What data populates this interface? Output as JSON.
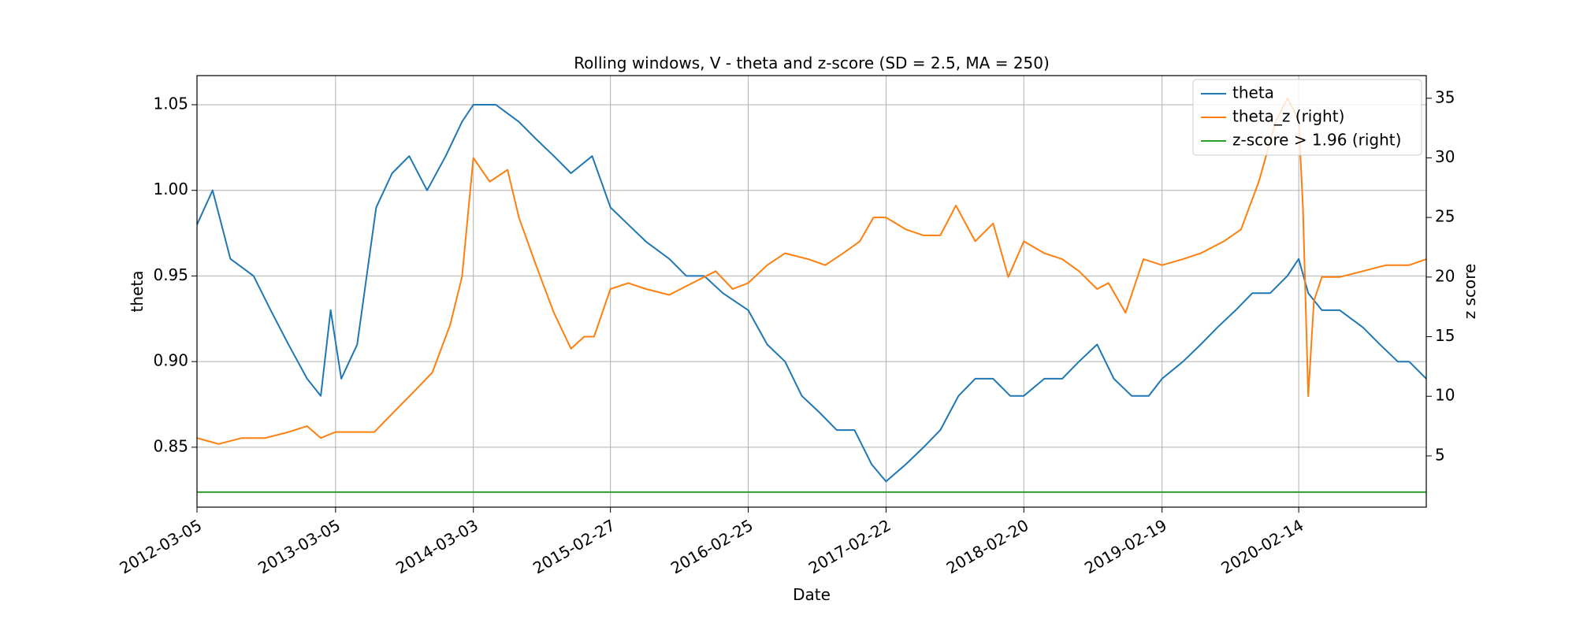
{
  "chart_data": {
    "type": "line",
    "title": "Rolling windows, V - theta and z-score (SD = 2.5, MA = 250)",
    "xlabel": "Date",
    "ylabel": "theta",
    "ylabel_right": "z score",
    "x_range": [
      "2012-03-05",
      "2021-01-15"
    ],
    "x_ticks": [
      "2012-03-05",
      "2013-03-05",
      "2014-03-03",
      "2015-02-27",
      "2016-02-25",
      "2017-02-22",
      "2018-02-20",
      "2019-02-19",
      "2020-02-14"
    ],
    "ylim_left": [
      0.815,
      1.067
    ],
    "yticks_left": [
      "0.85",
      "0.90",
      "0.95",
      "1.00",
      "1.05"
    ],
    "ylim_right": [
      0.7,
      36.9
    ],
    "yticks_right": [
      "5",
      "10",
      "15",
      "20",
      "25",
      "30",
      "35"
    ],
    "grid": true,
    "legend_position": "upper right",
    "series": [
      {
        "name": "theta",
        "axis": "left",
        "color": "#1f77b4",
        "x": [
          "2012-03-05",
          "2012-04-15",
          "2012-06-01",
          "2012-08-01",
          "2012-09-15",
          "2012-11-01",
          "2012-12-20",
          "2013-01-25",
          "2013-02-20",
          "2013-03-20",
          "2013-05-01",
          "2013-06-20",
          "2013-08-01",
          "2013-09-15",
          "2013-11-01",
          "2013-12-20",
          "2014-02-01",
          "2014-03-03",
          "2014-05-01",
          "2014-07-01",
          "2014-08-15",
          "2014-10-01",
          "2014-11-15",
          "2015-01-10",
          "2015-02-27",
          "2015-04-15",
          "2015-06-01",
          "2015-08-01",
          "2015-09-15",
          "2015-11-01",
          "2015-12-20",
          "2016-02-25",
          "2016-04-15",
          "2016-06-01",
          "2016-07-15",
          "2016-09-01",
          "2016-10-15",
          "2016-12-01",
          "2017-01-15",
          "2017-02-22",
          "2017-04-15",
          "2017-06-01",
          "2017-07-15",
          "2017-09-01",
          "2017-10-15",
          "2017-12-01",
          "2018-01-15",
          "2018-02-20",
          "2018-04-15",
          "2018-06-01",
          "2018-07-15",
          "2018-09-01",
          "2018-10-15",
          "2018-12-01",
          "2019-01-15",
          "2019-02-19",
          "2019-04-15",
          "2019-06-01",
          "2019-07-15",
          "2019-09-01",
          "2019-10-15",
          "2019-12-01",
          "2020-01-15",
          "2020-02-14",
          "2020-03-10",
          "2020-04-15",
          "2020-06-01",
          "2020-08-01",
          "2020-09-15",
          "2020-11-01",
          "2020-12-01",
          "2021-01-15"
        ],
        "values": [
          0.98,
          1.0,
          0.96,
          0.95,
          0.93,
          0.91,
          0.89,
          0.88,
          0.93,
          0.89,
          0.91,
          0.99,
          1.01,
          1.02,
          1.0,
          1.02,
          1.04,
          1.05,
          1.05,
          1.04,
          1.03,
          1.02,
          1.01,
          1.02,
          0.99,
          0.98,
          0.97,
          0.96,
          0.95,
          0.95,
          0.94,
          0.93,
          0.91,
          0.9,
          0.88,
          0.87,
          0.86,
          0.86,
          0.84,
          0.83,
          0.84,
          0.85,
          0.86,
          0.88,
          0.89,
          0.89,
          0.88,
          0.88,
          0.89,
          0.89,
          0.9,
          0.91,
          0.89,
          0.88,
          0.88,
          0.89,
          0.9,
          0.91,
          0.92,
          0.93,
          0.94,
          0.94,
          0.95,
          0.96,
          0.94,
          0.93,
          0.93,
          0.92,
          0.91,
          0.9,
          0.9,
          0.89
        ]
      },
      {
        "name": "theta_z (right)",
        "axis": "right",
        "color": "#ff7f0e",
        "x": [
          "2012-03-05",
          "2012-05-01",
          "2012-07-01",
          "2012-09-01",
          "2012-11-01",
          "2012-12-20",
          "2013-01-25",
          "2013-03-05",
          "2013-05-01",
          "2013-06-15",
          "2013-08-15",
          "2013-10-01",
          "2013-11-15",
          "2014-01-01",
          "2014-02-01",
          "2014-03-03",
          "2014-04-15",
          "2014-06-01",
          "2014-07-01",
          "2014-08-15",
          "2014-10-01",
          "2014-11-15",
          "2014-12-20",
          "2015-01-15",
          "2015-02-27",
          "2015-04-15",
          "2015-06-01",
          "2015-08-01",
          "2015-10-01",
          "2015-12-01",
          "2016-01-15",
          "2016-02-25",
          "2016-04-15",
          "2016-06-01",
          "2016-08-01",
          "2016-09-15",
          "2016-11-01",
          "2016-12-15",
          "2017-01-20",
          "2017-02-22",
          "2017-04-15",
          "2017-06-01",
          "2017-07-15",
          "2017-08-25",
          "2017-10-15",
          "2017-12-01",
          "2018-01-10",
          "2018-02-20",
          "2018-04-15",
          "2018-06-01",
          "2018-07-15",
          "2018-09-01",
          "2018-10-01",
          "2018-11-15",
          "2019-01-01",
          "2019-02-19",
          "2019-04-15",
          "2019-06-01",
          "2019-08-01",
          "2019-09-15",
          "2019-11-01",
          "2019-12-15",
          "2020-01-15",
          "2020-02-01",
          "2020-02-14",
          "2020-02-25",
          "2020-03-10",
          "2020-03-25",
          "2020-04-15",
          "2020-06-01",
          "2020-08-01",
          "2020-10-01",
          "2020-12-01",
          "2021-01-15"
        ],
        "values": [
          6.5,
          6.0,
          6.5,
          6.5,
          7.0,
          7.5,
          6.5,
          7.0,
          7.0,
          7.0,
          9.0,
          10.5,
          12.0,
          16.0,
          20.0,
          30.0,
          28.0,
          29.0,
          25.0,
          21.0,
          17.0,
          14.0,
          15.0,
          15.0,
          19.0,
          19.5,
          19.0,
          18.5,
          19.5,
          20.5,
          19.0,
          19.5,
          21.0,
          22.0,
          21.5,
          21.0,
          22.0,
          23.0,
          25.0,
          25.0,
          24.0,
          23.5,
          23.5,
          26.0,
          23.0,
          24.5,
          20.0,
          23.0,
          22.0,
          21.5,
          20.5,
          19.0,
          19.5,
          17.0,
          21.5,
          21.0,
          21.5,
          22.0,
          23.0,
          24.0,
          28.0,
          33.0,
          35.0,
          34.0,
          33.0,
          26.0,
          10.0,
          18.0,
          20.0,
          20.0,
          20.5,
          21.0,
          21.0,
          21.5
        ]
      },
      {
        "name": "z-score > 1.96 (right)",
        "axis": "right",
        "color": "#2ca02c",
        "x": [
          "2012-03-05",
          "2021-01-15"
        ],
        "values": [
          1.96,
          1.96
        ]
      }
    ]
  }
}
